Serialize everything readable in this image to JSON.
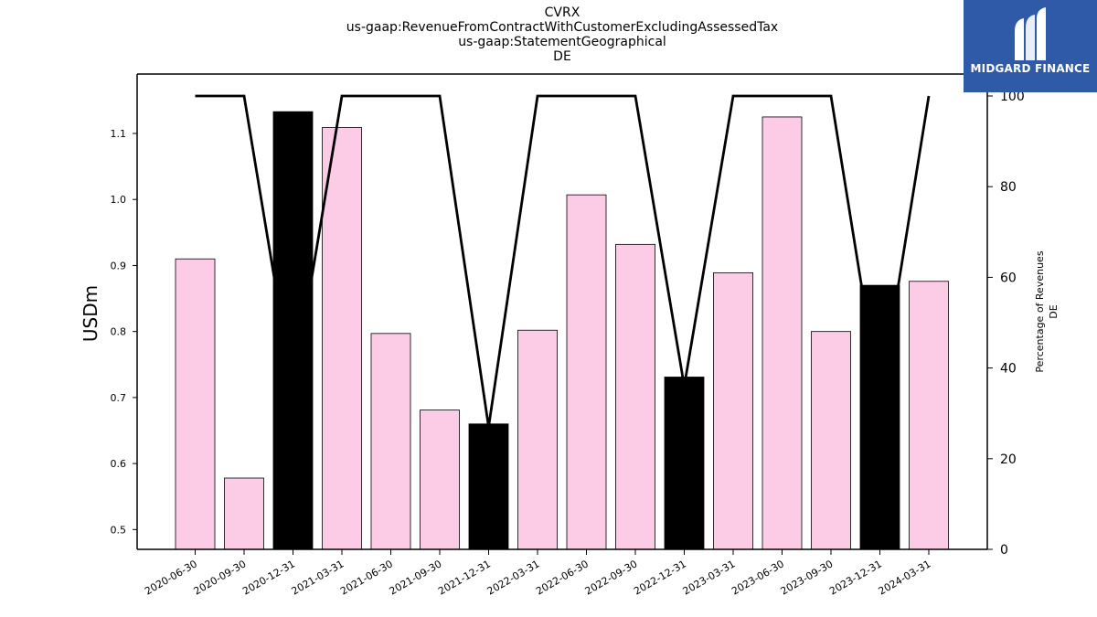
{
  "header": {
    "ticker": "CVRX",
    "concept": "us-gaap:RevenueFromContractWithCustomerExcludingAssessedTax",
    "axis": "us-gaap:StatementGeographical",
    "member": "DE"
  },
  "logo": {
    "text": "MIDGARD FINANCE",
    "background": "#2f5aa8"
  },
  "chart_data": {
    "type": "bar",
    "title": "CVRX us-gaap:RevenueFromContractWithCustomerExcludingAssessedTax us-gaap:StatementGeographical DE",
    "categories": [
      "2020-06-30",
      "2020-09-30",
      "2020-12-31",
      "2021-03-31",
      "2021-06-30",
      "2021-09-30",
      "2021-12-31",
      "2022-03-31",
      "2022-06-30",
      "2022-09-30",
      "2022-12-31",
      "2023-03-31",
      "2023-06-30",
      "2023-09-30",
      "2023-12-31",
      "2024-03-31"
    ],
    "series": [
      {
        "values": [
          0.91,
          0.578,
          1.133,
          1.109,
          0.797,
          0.681,
          0.66,
          0.802,
          1.007,
          0.932,
          0.731,
          0.889,
          1.125,
          0.8,
          0.87,
          0.876
        ],
        "colors": [
          "#fccbe6",
          "#fccbe6",
          "#000000",
          "#fccbe6",
          "#fccbe6",
          "#fccbe6",
          "#000000",
          "#fccbe6",
          "#fccbe6",
          "#fccbe6",
          "#000000",
          "#fccbe6",
          "#fccbe6",
          "#fccbe6",
          "#000000",
          "#fccbe6"
        ]
      },
      {
        "axis": "right",
        "type": "line",
        "values": [
          100,
          100,
          35,
          100,
          100,
          100,
          27,
          100,
          100,
          100,
          36,
          100,
          100,
          100,
          33,
          100
        ]
      }
    ],
    "ylabel": "USDm",
    "y2label_lines": [
      "Percentage of Revenues",
      "DE"
    ],
    "ylim": [
      0.47,
      1.19
    ],
    "y2lim": [
      0,
      100
    ],
    "yticks": [
      0.5,
      0.6,
      0.7,
      0.8,
      0.9,
      1.0,
      1.1
    ],
    "ytick_labels": [
      "0.5",
      "0.6",
      "0.7",
      "0.8",
      "0.9",
      "1.0",
      "1.1"
    ],
    "y2ticks": [
      0,
      20,
      40,
      60,
      80,
      100
    ],
    "grid": false,
    "colors": {
      "bar_default": "#fccbe6",
      "bar_q4": "#000000",
      "line": "#000000"
    }
  }
}
